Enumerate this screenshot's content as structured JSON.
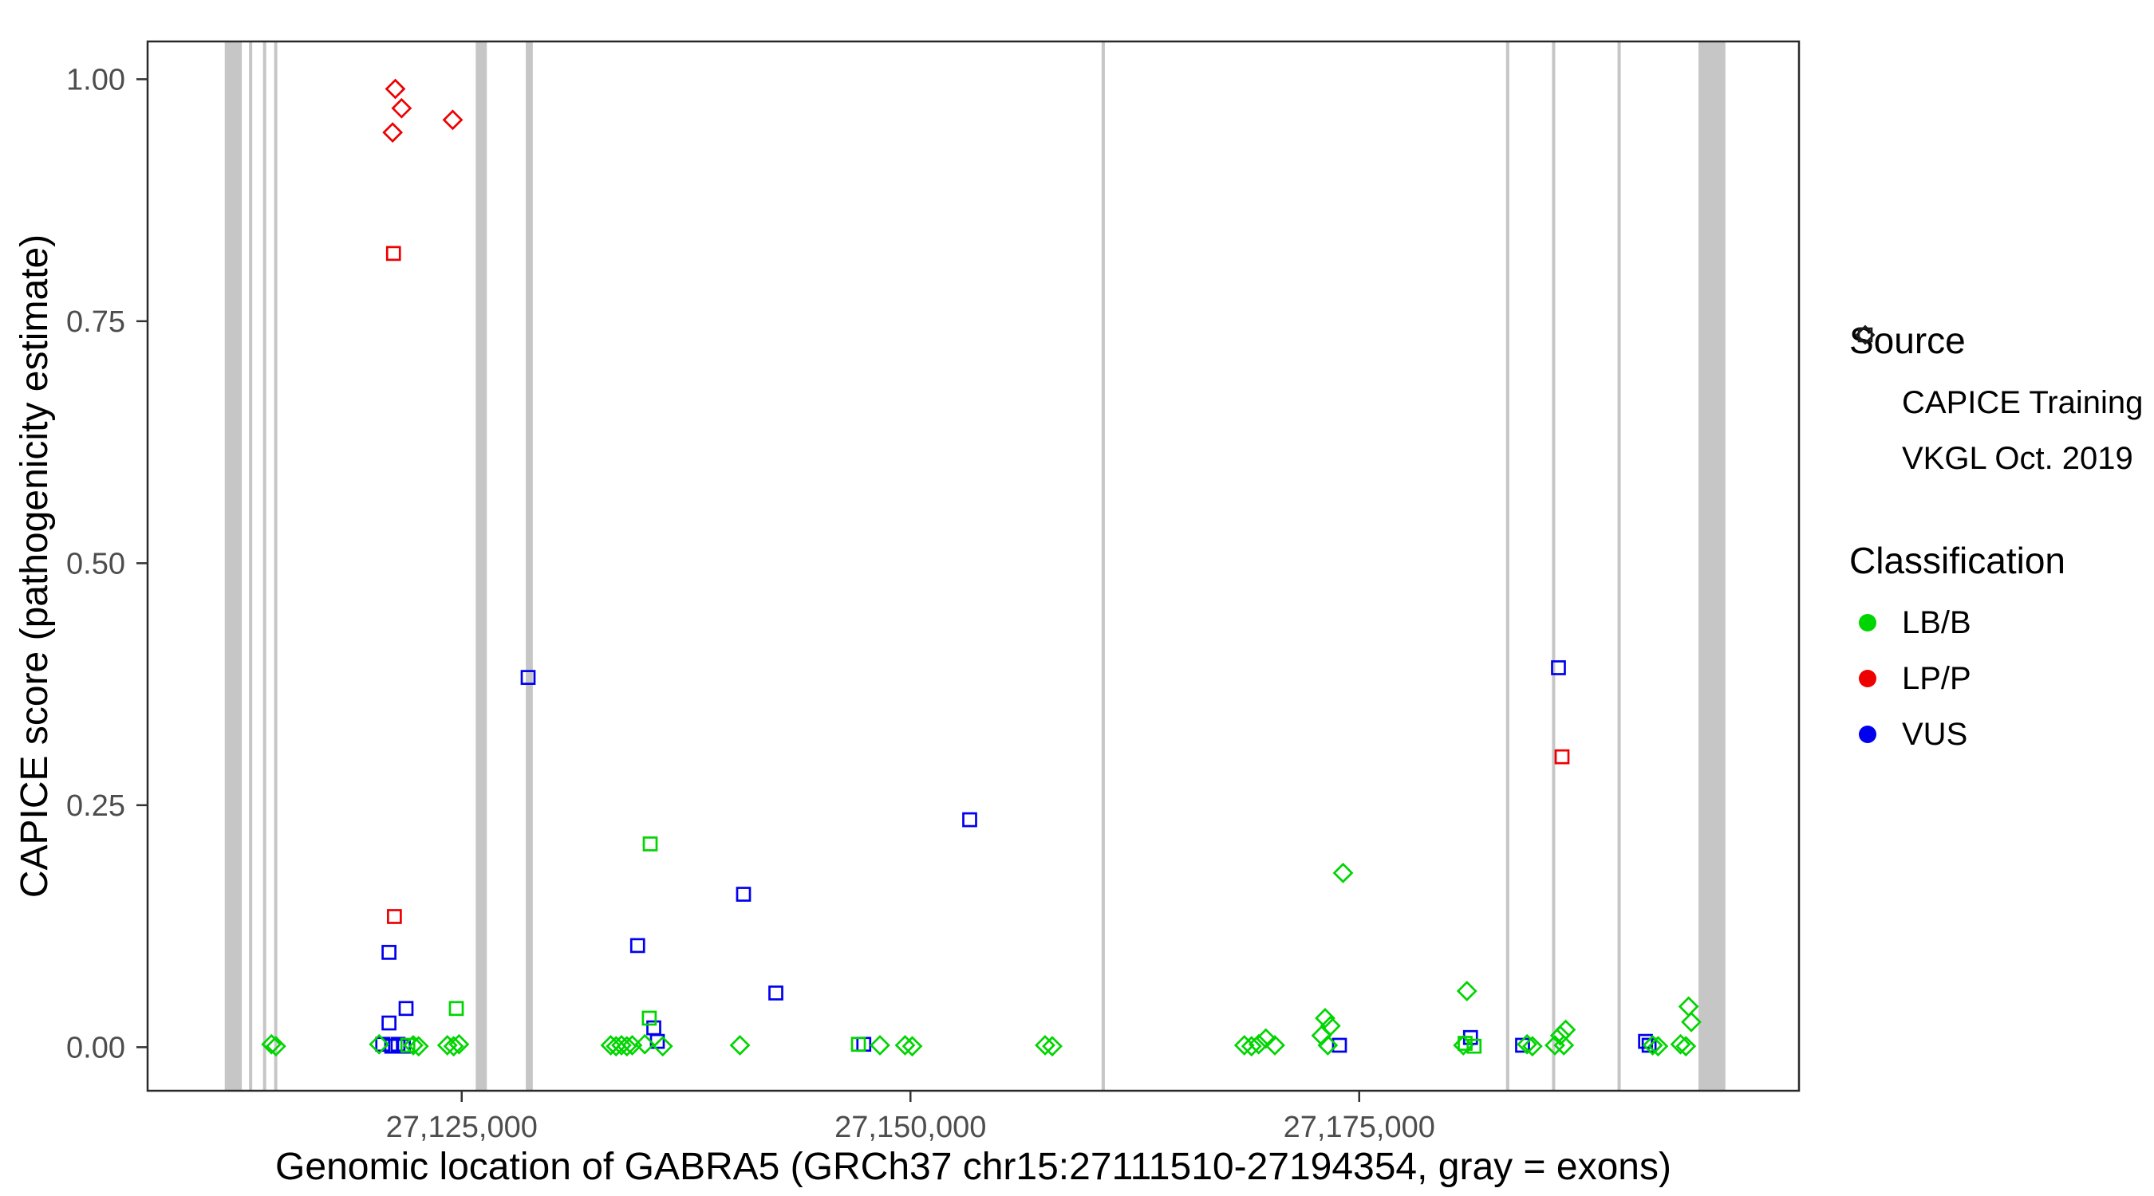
{
  "figure": {
    "x_axis_title": "Genomic location of GABRA5 (GRCh37 chr15:27111510-27194354, gray = exons)",
    "y_axis_title": "CAPICE score (pathogenicity estimate)"
  },
  "legend": {
    "source": {
      "title": "Source",
      "items": [
        {
          "label": "CAPICE Training",
          "marker": "diamond-outline"
        },
        {
          "label": "VKGL Oct. 2019",
          "marker": "square-outline"
        }
      ]
    },
    "classification": {
      "title": "Classification",
      "items": [
        {
          "label": "LB/B",
          "color": "#00d500"
        },
        {
          "label": "LP/P",
          "color": "#ee0000"
        },
        {
          "label": "VUS",
          "color": "#0000ee"
        }
      ]
    }
  },
  "chart_data": {
    "type": "scatter",
    "title": "",
    "xlabel": "Genomic location of GABRA5 (GRCh37 chr15:27111510-27194354, gray = exons)",
    "ylabel": "CAPICE score (pathogenicity estimate)",
    "xlim": [
      27107500,
      27199500
    ],
    "ylim": [
      -0.045,
      1.039
    ],
    "grid": false,
    "legend_position": "right",
    "x_ticks": [
      {
        "value": 27125000,
        "label": "27,125,000"
      },
      {
        "value": 27150000,
        "label": "27,150,000"
      },
      {
        "value": 27175000,
        "label": "27,175,000"
      }
    ],
    "y_ticks": [
      {
        "value": 0.0,
        "label": "0.00"
      },
      {
        "value": 0.25,
        "label": "0.25"
      },
      {
        "value": 0.5,
        "label": "0.50"
      },
      {
        "value": 0.75,
        "label": "0.75"
      },
      {
        "value": 1.0,
        "label": "1.00"
      }
    ],
    "colors": {
      "LB/B": "#00d500",
      "LP/P": "#ee0000",
      "VUS": "#0000ee",
      "exon": "#c6c6c6"
    },
    "exons": [
      [
        27111800,
        27112750
      ],
      [
        27113150,
        27113330
      ],
      [
        27113930,
        27114100
      ],
      [
        27114550,
        27114720
      ],
      [
        27125780,
        27126400
      ],
      [
        27128570,
        27128960
      ],
      [
        27160650,
        27160830
      ],
      [
        27183180,
        27183360
      ],
      [
        27185740,
        27185920
      ],
      [
        27189390,
        27189570
      ],
      [
        27193900,
        27195400
      ]
    ],
    "points": [
      {
        "x": 27121300,
        "y": 0.99,
        "source": "CAPICE Training",
        "cls": "LP/P"
      },
      {
        "x": 27121650,
        "y": 0.97,
        "source": "CAPICE Training",
        "cls": "LP/P"
      },
      {
        "x": 27121150,
        "y": 0.945,
        "source": "CAPICE Training",
        "cls": "LP/P"
      },
      {
        "x": 27124500,
        "y": 0.958,
        "source": "CAPICE Training",
        "cls": "LP/P"
      },
      {
        "x": 27121200,
        "y": 0.82,
        "source": "VKGL Oct. 2019",
        "cls": "LP/P"
      },
      {
        "x": 27121250,
        "y": 0.135,
        "source": "VKGL Oct. 2019",
        "cls": "LP/P"
      },
      {
        "x": 27186300,
        "y": 0.3,
        "source": "VKGL Oct. 2019",
        "cls": "LP/P"
      },
      {
        "x": 27128700,
        "y": 0.382,
        "source": "VKGL Oct. 2019",
        "cls": "VUS"
      },
      {
        "x": 27186100,
        "y": 0.392,
        "source": "VKGL Oct. 2019",
        "cls": "VUS"
      },
      {
        "x": 27153300,
        "y": 0.235,
        "source": "VKGL Oct. 2019",
        "cls": "VUS"
      },
      {
        "x": 27140700,
        "y": 0.158,
        "source": "VKGL Oct. 2019",
        "cls": "VUS"
      },
      {
        "x": 27134800,
        "y": 0.105,
        "source": "VKGL Oct. 2019",
        "cls": "VUS"
      },
      {
        "x": 27120950,
        "y": 0.098,
        "source": "VKGL Oct. 2019",
        "cls": "VUS"
      },
      {
        "x": 27142500,
        "y": 0.056,
        "source": "VKGL Oct. 2019",
        "cls": "VUS"
      },
      {
        "x": 27121900,
        "y": 0.04,
        "source": "VKGL Oct. 2019",
        "cls": "VUS"
      },
      {
        "x": 27120950,
        "y": 0.025,
        "source": "VKGL Oct. 2019",
        "cls": "VUS"
      },
      {
        "x": 27135700,
        "y": 0.02,
        "source": "VKGL Oct. 2019",
        "cls": "VUS"
      },
      {
        "x": 27135900,
        "y": 0.006,
        "source": "VKGL Oct. 2019",
        "cls": "VUS"
      },
      {
        "x": 27120600,
        "y": 0.003,
        "source": "VKGL Oct. 2019",
        "cls": "VUS"
      },
      {
        "x": 27121100,
        "y": 0.001,
        "source": "VKGL Oct. 2019",
        "cls": "VUS"
      },
      {
        "x": 27121450,
        "y": 0.003,
        "source": "VKGL Oct. 2019",
        "cls": "VUS"
      },
      {
        "x": 27121750,
        "y": 0.001,
        "source": "VKGL Oct. 2019",
        "cls": "VUS"
      },
      {
        "x": 27147400,
        "y": 0.003,
        "source": "VKGL Oct. 2019",
        "cls": "VUS"
      },
      {
        "x": 27173900,
        "y": 0.002,
        "source": "VKGL Oct. 2019",
        "cls": "VUS"
      },
      {
        "x": 27181200,
        "y": 0.01,
        "source": "VKGL Oct. 2019",
        "cls": "VUS"
      },
      {
        "x": 27184100,
        "y": 0.002,
        "source": "VKGL Oct. 2019",
        "cls": "VUS"
      },
      {
        "x": 27190950,
        "y": 0.006,
        "source": "VKGL Oct. 2019",
        "cls": "VUS"
      },
      {
        "x": 27191150,
        "y": 0.002,
        "source": "VKGL Oct. 2019",
        "cls": "VUS"
      },
      {
        "x": 27135500,
        "y": 0.21,
        "source": "VKGL Oct. 2019",
        "cls": "LB/B"
      },
      {
        "x": 27124700,
        "y": 0.04,
        "source": "VKGL Oct. 2019",
        "cls": "LB/B"
      },
      {
        "x": 27135450,
        "y": 0.03,
        "source": "VKGL Oct. 2019",
        "cls": "LB/B"
      },
      {
        "x": 27147100,
        "y": 0.003,
        "source": "VKGL Oct. 2019",
        "cls": "LB/B"
      },
      {
        "x": 27180900,
        "y": 0.004,
        "source": "VKGL Oct. 2019",
        "cls": "LB/B"
      },
      {
        "x": 27122000,
        "y": 0.002,
        "source": "VKGL Oct. 2019",
        "cls": "LB/B"
      },
      {
        "x": 27181400,
        "y": 0.001,
        "source": "VKGL Oct. 2019",
        "cls": "LB/B"
      },
      {
        "x": 27114400,
        "y": 0.003,
        "source": "CAPICE Training",
        "cls": "LB/B"
      },
      {
        "x": 27114650,
        "y": 0.001,
        "source": "CAPICE Training",
        "cls": "LB/B"
      },
      {
        "x": 27120400,
        "y": 0.003,
        "source": "CAPICE Training",
        "cls": "LB/B"
      },
      {
        "x": 27122300,
        "y": 0.002,
        "source": "CAPICE Training",
        "cls": "LB/B"
      },
      {
        "x": 27122600,
        "y": 0.001,
        "source": "CAPICE Training",
        "cls": "LB/B"
      },
      {
        "x": 27124200,
        "y": 0.002,
        "source": "CAPICE Training",
        "cls": "LB/B"
      },
      {
        "x": 27124550,
        "y": 0.001,
        "source": "CAPICE Training",
        "cls": "LB/B"
      },
      {
        "x": 27124850,
        "y": 0.003,
        "source": "CAPICE Training",
        "cls": "LB/B"
      },
      {
        "x": 27133300,
        "y": 0.002,
        "source": "CAPICE Training",
        "cls": "LB/B"
      },
      {
        "x": 27133600,
        "y": 0.001,
        "source": "CAPICE Training",
        "cls": "LB/B"
      },
      {
        "x": 27133900,
        "y": 0.002,
        "source": "CAPICE Training",
        "cls": "LB/B"
      },
      {
        "x": 27134200,
        "y": 0.001,
        "source": "CAPICE Training",
        "cls": "LB/B"
      },
      {
        "x": 27134500,
        "y": 0.002,
        "source": "CAPICE Training",
        "cls": "LB/B"
      },
      {
        "x": 27135200,
        "y": 0.003,
        "source": "CAPICE Training",
        "cls": "LB/B"
      },
      {
        "x": 27136200,
        "y": 0.001,
        "source": "CAPICE Training",
        "cls": "LB/B"
      },
      {
        "x": 27140500,
        "y": 0.002,
        "source": "CAPICE Training",
        "cls": "LB/B"
      },
      {
        "x": 27148300,
        "y": 0.002,
        "source": "CAPICE Training",
        "cls": "LB/B"
      },
      {
        "x": 27149700,
        "y": 0.002,
        "source": "CAPICE Training",
        "cls": "LB/B"
      },
      {
        "x": 27150100,
        "y": 0.001,
        "source": "CAPICE Training",
        "cls": "LB/B"
      },
      {
        "x": 27157500,
        "y": 0.002,
        "source": "CAPICE Training",
        "cls": "LB/B"
      },
      {
        "x": 27157900,
        "y": 0.001,
        "source": "CAPICE Training",
        "cls": "LB/B"
      },
      {
        "x": 27168600,
        "y": 0.002,
        "source": "CAPICE Training",
        "cls": "LB/B"
      },
      {
        "x": 27169000,
        "y": 0.001,
        "source": "CAPICE Training",
        "cls": "LB/B"
      },
      {
        "x": 27169400,
        "y": 0.003,
        "source": "CAPICE Training",
        "cls": "LB/B"
      },
      {
        "x": 27169800,
        "y": 0.009,
        "source": "CAPICE Training",
        "cls": "LB/B"
      },
      {
        "x": 27170300,
        "y": 0.002,
        "source": "CAPICE Training",
        "cls": "LB/B"
      },
      {
        "x": 27172900,
        "y": 0.012,
        "source": "CAPICE Training",
        "cls": "LB/B"
      },
      {
        "x": 27173100,
        "y": 0.03,
        "source": "CAPICE Training",
        "cls": "LB/B"
      },
      {
        "x": 27173400,
        "y": 0.022,
        "source": "CAPICE Training",
        "cls": "LB/B"
      },
      {
        "x": 27173250,
        "y": 0.002,
        "source": "CAPICE Training",
        "cls": "LB/B"
      },
      {
        "x": 27174100,
        "y": 0.18,
        "source": "CAPICE Training",
        "cls": "LB/B"
      },
      {
        "x": 27181000,
        "y": 0.058,
        "source": "CAPICE Training",
        "cls": "LB/B"
      },
      {
        "x": 27180800,
        "y": 0.002,
        "source": "CAPICE Training",
        "cls": "LB/B"
      },
      {
        "x": 27184350,
        "y": 0.003,
        "source": "CAPICE Training",
        "cls": "LB/B"
      },
      {
        "x": 27184650,
        "y": 0.001,
        "source": "CAPICE Training",
        "cls": "LB/B"
      },
      {
        "x": 27185900,
        "y": 0.002,
        "source": "CAPICE Training",
        "cls": "LB/B"
      },
      {
        "x": 27186200,
        "y": 0.012,
        "source": "CAPICE Training",
        "cls": "LB/B"
      },
      {
        "x": 27186500,
        "y": 0.018,
        "source": "CAPICE Training",
        "cls": "LB/B"
      },
      {
        "x": 27186400,
        "y": 0.002,
        "source": "CAPICE Training",
        "cls": "LB/B"
      },
      {
        "x": 27191350,
        "y": 0.002,
        "source": "CAPICE Training",
        "cls": "LB/B"
      },
      {
        "x": 27191650,
        "y": 0.001,
        "source": "CAPICE Training",
        "cls": "LB/B"
      },
      {
        "x": 27192900,
        "y": 0.003,
        "source": "CAPICE Training",
        "cls": "LB/B"
      },
      {
        "x": 27193200,
        "y": 0.001,
        "source": "CAPICE Training",
        "cls": "LB/B"
      },
      {
        "x": 27193350,
        "y": 0.042,
        "source": "CAPICE Training",
        "cls": "LB/B"
      },
      {
        "x": 27193500,
        "y": 0.026,
        "source": "CAPICE Training",
        "cls": "LB/B"
      }
    ]
  }
}
